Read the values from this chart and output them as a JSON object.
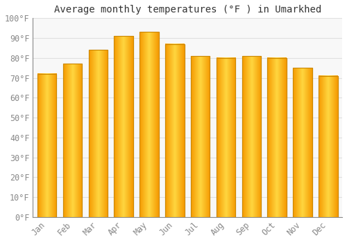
{
  "title": "Average monthly temperatures (°F ) in Umarkhed",
  "months": [
    "Jan",
    "Feb",
    "Mar",
    "Apr",
    "May",
    "Jun",
    "Jul",
    "Aug",
    "Sep",
    "Oct",
    "Nov",
    "Dec"
  ],
  "values": [
    72,
    77,
    84,
    91,
    93,
    87,
    81,
    80,
    81,
    80,
    75,
    71
  ],
  "bar_color_left": "#F5A800",
  "bar_color_center": "#FFD060",
  "bar_color_right": "#F5A800",
  "background_color": "#FFFFFF",
  "plot_bg_color": "#F8F8F8",
  "grid_color": "#E0E0E0",
  "ylim": [
    0,
    100
  ],
  "ytick_step": 10,
  "title_fontsize": 10,
  "tick_fontsize": 8.5,
  "tick_color": "#888888",
  "font_family": "monospace",
  "bar_width": 0.75,
  "bar_edge_color": "#CC8800"
}
